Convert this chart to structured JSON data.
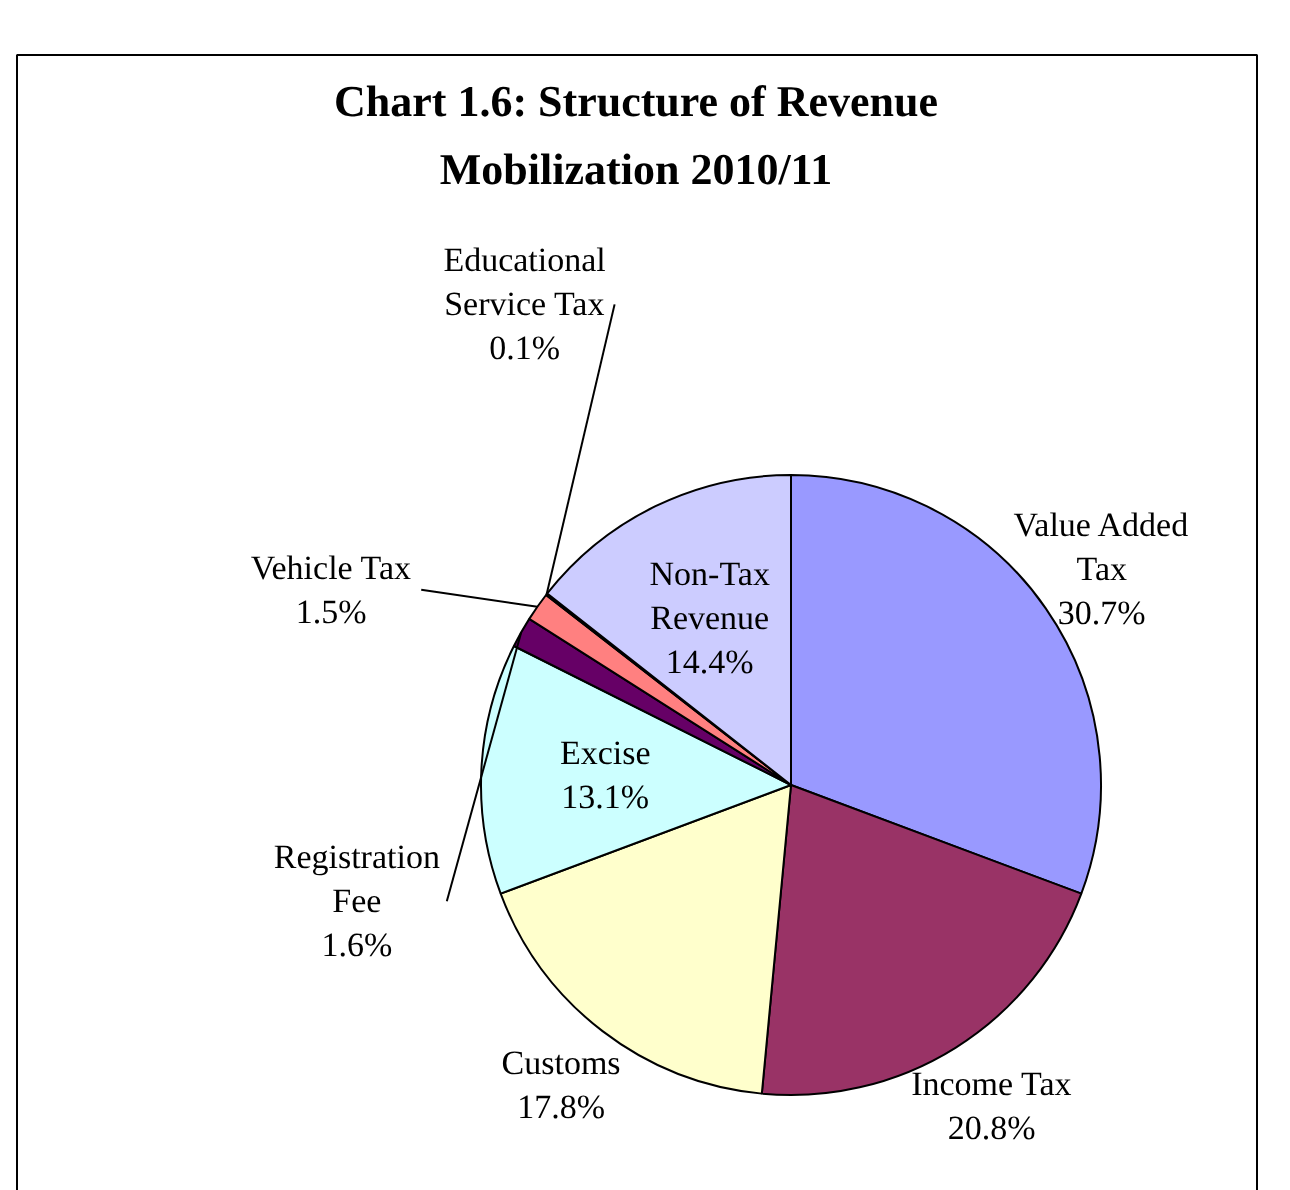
{
  "chart_data": {
    "type": "pie",
    "title": "Chart 1.6: Structure of Revenue Mobilization 2010/11",
    "categories": [
      "Value Added Tax",
      "Income Tax",
      "Customs",
      "Excise",
      "Registration Fee",
      "Vehicle Tax",
      "Educational Service Tax",
      "Non-Tax Revenue"
    ],
    "values": [
      30.7,
      20.8,
      17.8,
      13.1,
      1.6,
      1.5,
      0.1,
      14.4
    ],
    "colors": [
      "#9999ff",
      "#993366",
      "#ffffcc",
      "#ccffff",
      "#660066",
      "#ff8080",
      "#0066cc",
      "#ccccff"
    ],
    "value_labels": [
      "30.7%",
      "20.8%",
      "17.8%",
      "13.1%",
      "1.6%",
      "1.5%",
      "0.1%",
      "14.4%"
    ]
  }
}
